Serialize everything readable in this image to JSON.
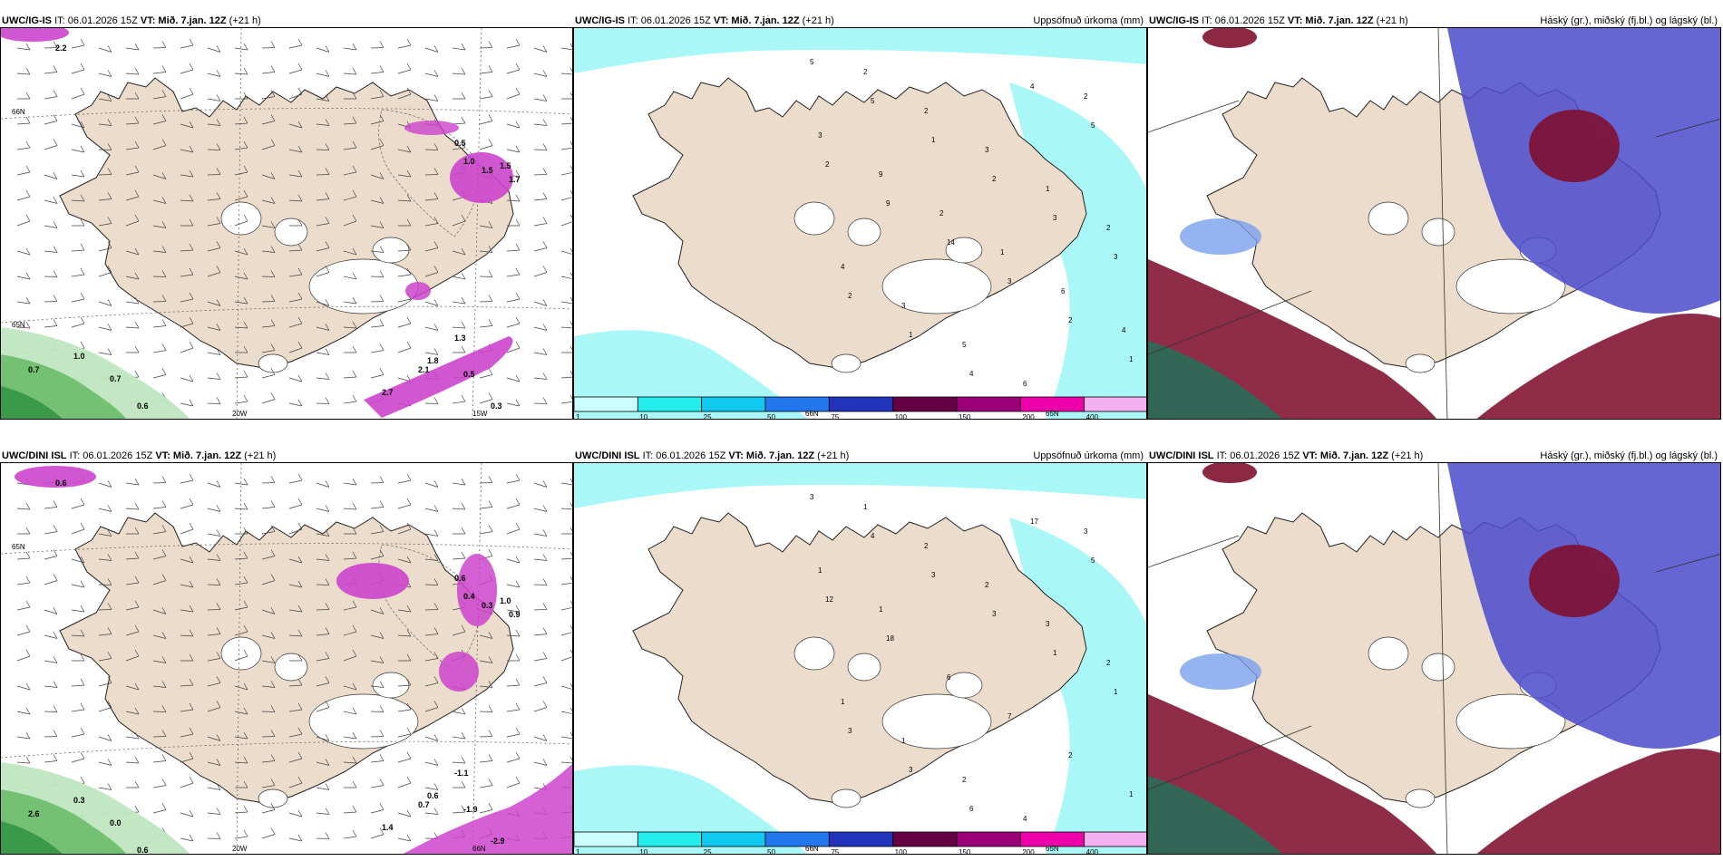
{
  "panels": [
    {
      "model": "UWC/IG-IS",
      "it": "IT: 06.01.2026 15Z",
      "vt": "VT: Mið. 7.jan. 12Z",
      "lead": "(+21 h)",
      "right": "",
      "type": "wind",
      "axis_labels": [
        "20W",
        "15W",
        "66N",
        "65N"
      ]
    },
    {
      "model": "UWC/IG-IS",
      "it": "IT: 06.01.2026 15Z",
      "vt": "VT: Mið. 7.jan. 12Z",
      "lead": "(+21 h)",
      "right": "Uppsöfnuð úrkoma (mm)",
      "type": "precip",
      "axis_labels": [
        "66N",
        "65N"
      ]
    },
    {
      "model": "UWC/IG-IS",
      "it": "IT: 06.01.2026 15Z",
      "vt": "VT: Mið. 7.jan. 12Z",
      "lead": "(+21 h)",
      "right": "Háský (gr.), miðský (fj.bl.) og lágský (bl.)",
      "type": "cloud"
    },
    {
      "model": "UWC/DINI ISL",
      "it": "IT: 06.01.2026 15Z",
      "vt": "VT: Mið. 7.jan. 12Z",
      "lead": "(+21 h)",
      "right": "",
      "type": "wind",
      "axis_labels": [
        "20W",
        "66N",
        "65N"
      ]
    },
    {
      "model": "UWC/DINI ISL",
      "it": "IT: 06.01.2026 15Z",
      "vt": "VT: Mið. 7.jan. 12Z",
      "lead": "(+21 h)",
      "right": "Uppsöfnuð úrkoma (mm)",
      "type": "precip",
      "axis_labels": [
        "66N",
        "65N"
      ]
    },
    {
      "model": "UWC/DINI ISL",
      "it": "IT: 06.01.2026 15Z",
      "vt": "VT: Mið. 7.jan. 12Z",
      "lead": "(+21 h)",
      "right": "Háský (gr.), miðský (fj.bl.) og lágský (bl.)",
      "type": "cloud"
    }
  ],
  "wind_labels_top": [
    "0.7",
    "1.0",
    "0.7",
    "0.6",
    "0.5",
    "1.0",
    "1.5",
    "1.5",
    "1.7",
    "2.1",
    "2.7",
    "1.8",
    "1.3",
    "0.5",
    "0.3",
    "2.2"
  ],
  "wind_labels_bottom": [
    "2.6",
    "0.3",
    "0.0",
    "0.6",
    "0.6",
    "0.4",
    "0.3",
    "1.0",
    "0.9",
    "0.7",
    "1.4",
    "0.6",
    "-1.1",
    "-1.9",
    "-2.9",
    "0.6"
  ],
  "precip_labels_top": [
    "5",
    "5",
    "1",
    "2",
    "3",
    "3",
    "2",
    "1",
    "4",
    "4",
    "5",
    "2",
    "9",
    "14",
    "3",
    "2",
    "1",
    "2",
    "2",
    "3",
    "1",
    "2",
    "4",
    "3",
    "5",
    "6",
    "2",
    "3",
    "9",
    "2",
    "1",
    "6",
    "4"
  ],
  "precip_labels_bottom": [
    "3",
    "4",
    "3",
    "3",
    "1",
    "1",
    "3",
    "3",
    "6",
    "17",
    "5",
    "12",
    "18",
    "6",
    "7",
    "2",
    "1",
    "1",
    "2",
    "2",
    "3",
    "2",
    "1",
    "1",
    "2",
    "4",
    "3",
    "1",
    "1"
  ],
  "legend": {
    "colors": [
      "#ccffff",
      "#22eeee",
      "#11c8ee",
      "#2277ee",
      "#2233bb",
      "#660044",
      "#990077",
      "#ee00aa",
      "#f4b0f0"
    ],
    "labels": [
      "1",
      "10",
      "25",
      "50",
      "75",
      "100",
      "150",
      "200",
      "400"
    ]
  },
  "colors": {
    "land": "#ecdccb",
    "wind_green": "#3a9a4a",
    "magenta": "#cc44cc",
    "precip_cyan": "#aaf7f7",
    "cloud_blue": "#4a4acc",
    "cloud_maroon": "#801030",
    "cloud_teal": "#2d6a5a"
  }
}
